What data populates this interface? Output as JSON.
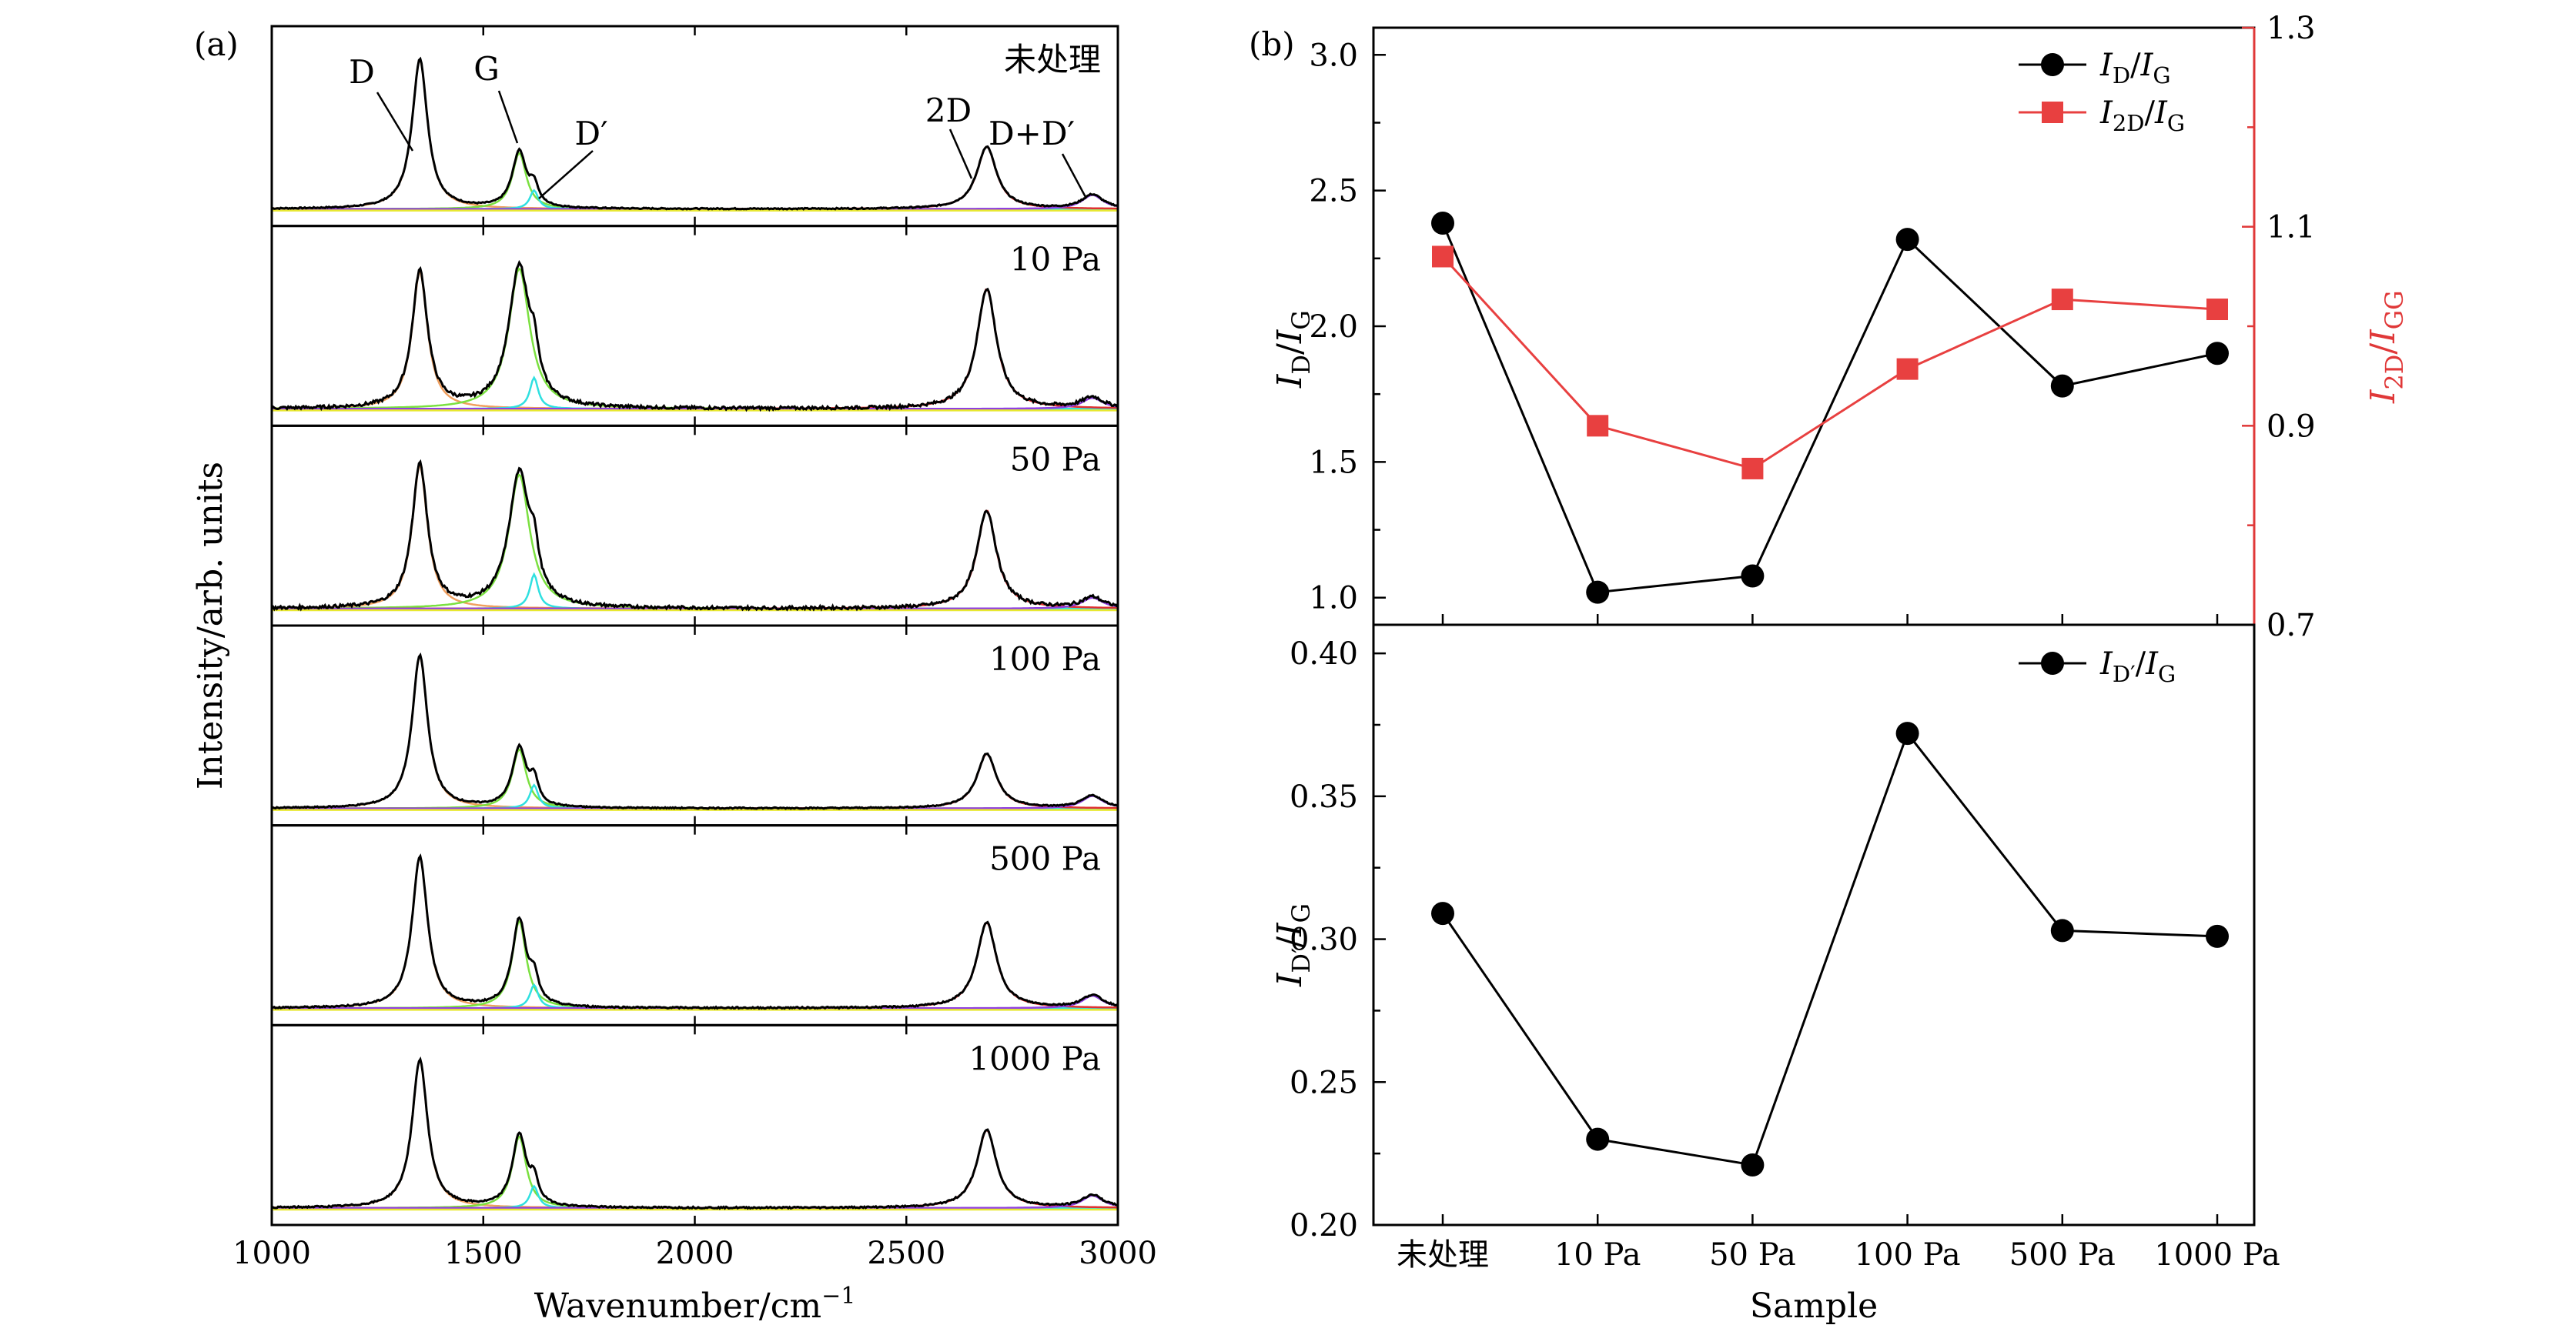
{
  "chart_data": [
    {
      "panel_label": "(a)",
      "type": "line",
      "xlabel": "Wavenumber/cm",
      "xlabel_sup": "−1",
      "ylabel": "Intensity/arb. units",
      "xlim": [
        1000,
        3000
      ],
      "x_ticks": [
        1000,
        1500,
        2000,
        2500,
        3000
      ],
      "peak_labels": [
        "D",
        "G",
        "D′",
        "2D",
        "D+D′"
      ],
      "spectra": [
        {
          "label": "未处理",
          "peaks": [
            {
              "pos": 1350,
              "h": 0.96
            },
            {
              "pos": 1585,
              "h": 0.36
            },
            {
              "pos": 1620,
              "h": 0.12
            },
            {
              "pos": 2690,
              "h": 0.4
            },
            {
              "pos": 2940,
              "h": 0.09
            }
          ],
          "noise": 0.004
        },
        {
          "label": "10 Pa",
          "peaks": [
            {
              "pos": 1350,
              "h": 0.88
            },
            {
              "pos": 1585,
              "h": 0.9
            },
            {
              "pos": 1620,
              "h": 0.2
            },
            {
              "pos": 2690,
              "h": 0.77
            },
            {
              "pos": 2940,
              "h": 0.07
            }
          ],
          "noise": 0.01
        },
        {
          "label": "50 Pa",
          "peaks": [
            {
              "pos": 1350,
              "h": 0.92
            },
            {
              "pos": 1585,
              "h": 0.86
            },
            {
              "pos": 1620,
              "h": 0.22
            },
            {
              "pos": 2690,
              "h": 0.63
            },
            {
              "pos": 2940,
              "h": 0.07
            }
          ],
          "noise": 0.01
        },
        {
          "label": "100 Pa",
          "peaks": [
            {
              "pos": 1350,
              "h": 0.98
            },
            {
              "pos": 1585,
              "h": 0.38
            },
            {
              "pos": 1620,
              "h": 0.15
            },
            {
              "pos": 2690,
              "h": 0.35
            },
            {
              "pos": 2940,
              "h": 0.08
            }
          ],
          "noise": 0.004
        },
        {
          "label": "500 Pa",
          "peaks": [
            {
              "pos": 1350,
              "h": 0.97
            },
            {
              "pos": 1585,
              "h": 0.56
            },
            {
              "pos": 1620,
              "h": 0.15
            },
            {
              "pos": 2690,
              "h": 0.55
            },
            {
              "pos": 2940,
              "h": 0.08
            }
          ],
          "noise": 0.005
        },
        {
          "label": "1000 Pa",
          "peaks": [
            {
              "pos": 1350,
              "h": 0.95
            },
            {
              "pos": 1585,
              "h": 0.46
            },
            {
              "pos": 1620,
              "h": 0.14
            },
            {
              "pos": 2690,
              "h": 0.5
            },
            {
              "pos": 2940,
              "h": 0.08
            }
          ],
          "noise": 0.005
        }
      ],
      "fit_component_colors": {
        "D": "#f0a060",
        "G": "#7be040",
        "D_prime": "#30e0e0",
        "2D": "#e03030",
        "D_plus_D_prime": "#9040e0",
        "baseline": "#e8e830",
        "extra": "#e040e0"
      }
    },
    {
      "panel_label": "(b)",
      "type": "line",
      "categories": [
        "未处理",
        "10 Pa",
        "50 Pa",
        "100 Pa",
        "500 Pa",
        "1000 Pa"
      ],
      "xlabel": "Sample",
      "top": {
        "ylim_left": [
          0.9,
          3.1
        ],
        "yticks_left": [
          1.0,
          1.5,
          2.0,
          2.5,
          3.0
        ],
        "ylim_right": [
          0.7,
          1.3
        ],
        "yticks_right": [
          0.7,
          0.9,
          1.1,
          1.3
        ],
        "ylabel_left": {
          "main": "I",
          "sub1": "D",
          "slash": "/",
          "main2": "I",
          "sub2": "G"
        },
        "ylabel_right": {
          "main": "I",
          "sub1": "2D",
          "slash": "/",
          "main2": "I",
          "sub2": "GG"
        },
        "right_axis_color": "#e03838",
        "series": [
          {
            "name": "I_D/I_G",
            "legend": {
              "main": "I",
              "sub1": "D",
              "slash": "/",
              "main2": "I",
              "sub2": "G"
            },
            "axis": "left",
            "color": "#000000",
            "marker": "circle",
            "values": [
              2.38,
              1.02,
              1.08,
              2.32,
              1.78,
              1.9
            ]
          },
          {
            "name": "I_2D/I_G",
            "legend": {
              "main": "I",
              "sub1": "2D",
              "slash": "/",
              "main2": "I",
              "sub2": "G"
            },
            "axis": "right",
            "color": "#e84040",
            "marker": "square",
            "values": [
              1.07,
              0.9,
              0.857,
              0.957,
              1.027,
              1.017
            ]
          }
        ]
      },
      "bottom": {
        "ylim": [
          0.2,
          0.41
        ],
        "yticks": [
          0.2,
          0.25,
          0.3,
          0.35,
          0.4
        ],
        "ylabel": {
          "main": "I",
          "sub1": "D′",
          "slash": "/",
          "main2": "I",
          "sub2": "G"
        },
        "series": [
          {
            "name": "I_D'/I_G",
            "legend": {
              "main": "I",
              "sub1": "D′",
              "slash": "/",
              "main2": "I",
              "sub2": "G"
            },
            "color": "#000000",
            "marker": "circle",
            "values": [
              0.309,
              0.23,
              0.221,
              0.372,
              0.303,
              0.301
            ]
          }
        ]
      }
    }
  ]
}
